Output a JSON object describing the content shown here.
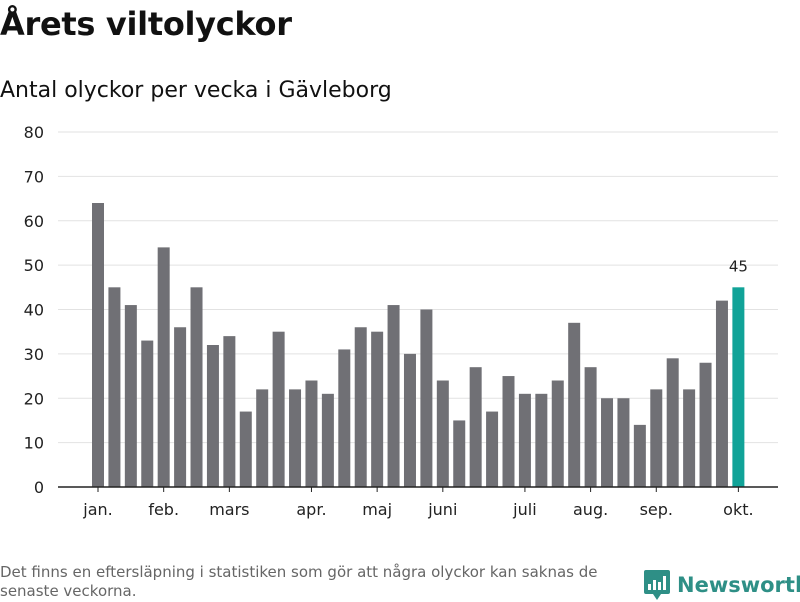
{
  "header": {
    "title": "Årets viltolyckor",
    "subtitle": "Antal olyckor per vecka i Gävleborg"
  },
  "footer": {
    "note": "Det finns en eftersläpning i statistiken som gör att några olyckor kan saknas de senaste veckorna.",
    "brand": "Newsworthy"
  },
  "colors": {
    "bar": "#707075",
    "highlight": "#11a398",
    "grid": "#e2e2e2",
    "axis": "#222222",
    "text": "#222222",
    "brand": "#2e8f86"
  },
  "chart_data": {
    "type": "bar",
    "title": "Årets viltolyckor",
    "subtitle": "Antal olyckor per vecka i Gävleborg",
    "xlabel": "",
    "ylabel": "",
    "ylim": [
      0,
      80
    ],
    "yticks": [
      0,
      10,
      20,
      30,
      40,
      50,
      60,
      70,
      80
    ],
    "grid": true,
    "legend": "none",
    "values": [
      64,
      45,
      41,
      33,
      54,
      36,
      45,
      32,
      34,
      17,
      22,
      35,
      22,
      24,
      21,
      31,
      36,
      35,
      41,
      30,
      40,
      24,
      15,
      27,
      17,
      25,
      21,
      21,
      24,
      37,
      27,
      20,
      20,
      14,
      22,
      29,
      22,
      28,
      42,
      45
    ],
    "highlight_index": 39,
    "highlight_label": "45",
    "month_ticks": [
      {
        "label": "jan.",
        "index": 0
      },
      {
        "label": "feb.",
        "index": 4
      },
      {
        "label": "mars",
        "index": 8
      },
      {
        "label": "apr.",
        "index": 13
      },
      {
        "label": "maj",
        "index": 17
      },
      {
        "label": "juni",
        "index": 21
      },
      {
        "label": "juli",
        "index": 26
      },
      {
        "label": "aug.",
        "index": 30
      },
      {
        "label": "sep.",
        "index": 34
      },
      {
        "label": "okt.",
        "index": 39
      }
    ]
  }
}
